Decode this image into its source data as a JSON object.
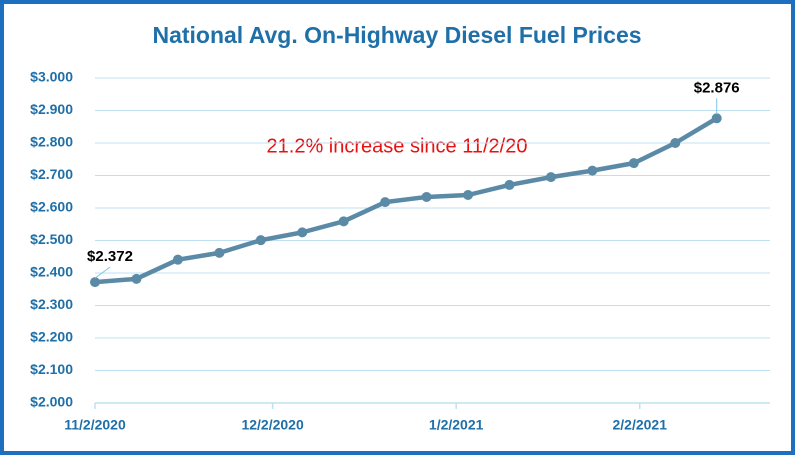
{
  "chart_data": {
    "type": "line",
    "title": "National Avg. On-Highway Diesel Fuel Prices",
    "annotation": "21.2% increase since 11/2/20",
    "x": [
      "2020-11-02",
      "2020-11-09",
      "2020-11-16",
      "2020-11-23",
      "2020-11-30",
      "2020-12-07",
      "2020-12-14",
      "2020-12-21",
      "2020-12-28",
      "2021-01-04",
      "2021-01-11",
      "2021-01-18",
      "2021-01-25",
      "2021-02-01",
      "2021-02-08",
      "2021-02-15"
    ],
    "series": [
      {
        "color": "#5a8aa6",
        "values": [
          2.372,
          2.382,
          2.441,
          2.462,
          2.501,
          2.525,
          2.559,
          2.618,
          2.634,
          2.64,
          2.671,
          2.695,
          2.715,
          2.738,
          2.8,
          2.876
        ],
        "value_labels": [
          "$2.372",
          null,
          null,
          null,
          null,
          null,
          null,
          null,
          null,
          null,
          null,
          null,
          null,
          null,
          null,
          "$2.876"
        ]
      }
    ],
    "xlim": [
      "2020-11-02",
      "2021-02-24"
    ],
    "xticks": [
      {
        "value": "2020-11-02",
        "label": "11/2/2020"
      },
      {
        "value": "2020-12-02",
        "label": "12/2/2020"
      },
      {
        "value": "2021-01-02",
        "label": "1/2/2021"
      },
      {
        "value": "2021-02-02",
        "label": "2/2/2021"
      }
    ],
    "ylim": [
      2,
      3
    ],
    "yticks": [
      {
        "value": 2,
        "label": "$2.000"
      },
      {
        "value": 2.1,
        "label": "$2.100"
      },
      {
        "value": 2.2,
        "label": "$2.200"
      },
      {
        "value": 2.3,
        "label": "$2.300"
      },
      {
        "value": 2.4,
        "label": "$2.400"
      },
      {
        "value": 2.5,
        "label": "$2.500"
      },
      {
        "value": 2.6,
        "label": "$2.600"
      },
      {
        "value": 2.7,
        "label": "$2.700"
      },
      {
        "value": 2.8,
        "label": "$2.800"
      },
      {
        "value": 2.9,
        "label": "$2.900"
      },
      {
        "value": 3,
        "label": "$3.000"
      }
    ],
    "grid": true
  }
}
